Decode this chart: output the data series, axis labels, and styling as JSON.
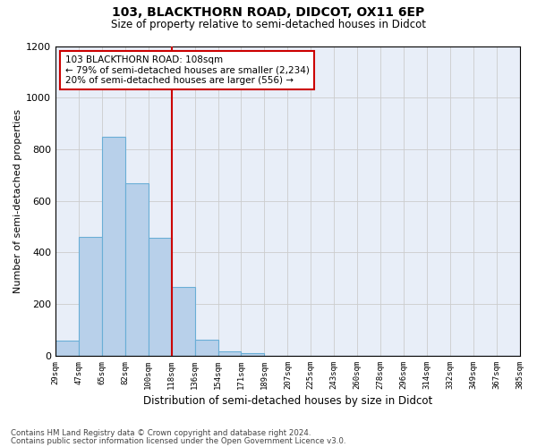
{
  "title1": "103, BLACKTHORN ROAD, DIDCOT, OX11 6EP",
  "title2": "Size of property relative to semi-detached houses in Didcot",
  "xlabel": "Distribution of semi-detached houses by size in Didcot",
  "ylabel": "Number of semi-detached properties",
  "bins": [
    "29sqm",
    "47sqm",
    "65sqm",
    "82sqm",
    "100sqm",
    "118sqm",
    "136sqm",
    "154sqm",
    "171sqm",
    "189sqm",
    "207sqm",
    "225sqm",
    "243sqm",
    "260sqm",
    "278sqm",
    "296sqm",
    "314sqm",
    "332sqm",
    "349sqm",
    "367sqm",
    "385sqm"
  ],
  "values": [
    58,
    462,
    850,
    668,
    458,
    265,
    62,
    18,
    10,
    0,
    0,
    0,
    0,
    0,
    0,
    0,
    0,
    0,
    0,
    0
  ],
  "bar_color": "#b8d0ea",
  "bar_edge_color": "#6aaed6",
  "vline_color": "#cc0000",
  "vline_x_index": 5,
  "annotation_text": "103 BLACKTHORN ROAD: 108sqm\n← 79% of semi-detached houses are smaller (2,234)\n20% of semi-detached houses are larger (556) →",
  "annotation_box_color": "#ffffff",
  "annotation_box_edge": "#cc0000",
  "ylim": [
    0,
    1200
  ],
  "yticks": [
    0,
    200,
    400,
    600,
    800,
    1000,
    1200
  ],
  "grid_color": "#cccccc",
  "bg_color": "#e8eef8",
  "footer1": "Contains HM Land Registry data © Crown copyright and database right 2024.",
  "footer2": "Contains public sector information licensed under the Open Government Licence v3.0."
}
